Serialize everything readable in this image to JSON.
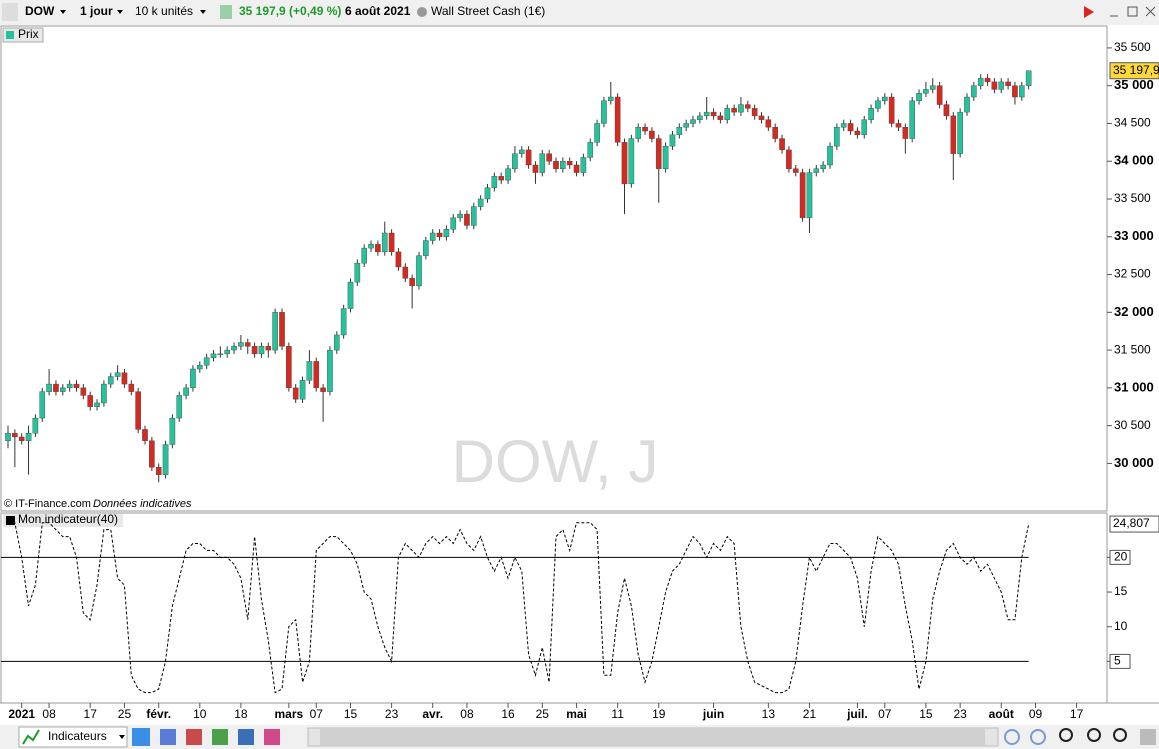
{
  "toolbar": {
    "symbol": "DOW",
    "period": "1 jour",
    "units": "10 k unités",
    "quote": "35 197,9 (+0,49 %)",
    "date": "6 août 2021",
    "instrument": "Wall Street Cash (1€)"
  },
  "watermark": "DOW, J",
  "source": "© IT-Finance.com",
  "note": "Données indicatives",
  "bottom_bar": {
    "button": "Indicateurs"
  },
  "chart_data": [
    {
      "type": "candlestick",
      "title": "Prix",
      "up_color": "#26c29b",
      "down_color": "#d42a20",
      "last_value_label": "35 197,9",
      "ylim": [
        29370,
        35790
      ],
      "yticks": [
        {
          "value": 30000,
          "label": "30 000"
        },
        {
          "value": 30500,
          "label": "30 500"
        },
        {
          "value": 31000,
          "label": "31 000"
        },
        {
          "value": 31500,
          "label": "31 500"
        },
        {
          "value": 32000,
          "label": "32 000"
        },
        {
          "value": 32500,
          "label": "32 500"
        },
        {
          "value": 33000,
          "label": "33 000"
        },
        {
          "value": 33500,
          "label": "33 500"
        },
        {
          "value": 34000,
          "label": "34 000"
        },
        {
          "value": 34500,
          "label": "34 500"
        },
        {
          "value": 35000,
          "label": "35 000"
        },
        {
          "value": 35500,
          "label": "35 500"
        }
      ],
      "categories": [
        null,
        null,
        "2021",
        null,
        null,
        null,
        "08",
        null,
        null,
        null,
        null,
        null,
        "17",
        null,
        null,
        null,
        null,
        "25",
        null,
        null,
        null,
        null,
        "févr.",
        null,
        null,
        null,
        null,
        null,
        "10",
        null,
        null,
        null,
        null,
        null,
        "18",
        null,
        null,
        null,
        null,
        null,
        null,
        "mars",
        null,
        null,
        null,
        "07",
        null,
        null,
        null,
        null,
        "15",
        null,
        null,
        null,
        null,
        null,
        "23",
        null,
        null,
        null,
        null,
        null,
        "avr.",
        null,
        null,
        null,
        null,
        "08",
        null,
        null,
        null,
        null,
        null,
        "16",
        null,
        null,
        null,
        null,
        "25",
        null,
        null,
        null,
        null,
        "mai",
        null,
        null,
        null,
        null,
        null,
        "11",
        null,
        null,
        null,
        null,
        null,
        "19",
        null,
        null,
        null,
        null,
        null,
        null,
        null,
        "juin",
        null,
        null,
        null,
        null,
        null,
        null,
        null,
        "13",
        null,
        null,
        null,
        null,
        null,
        "21",
        null,
        null,
        null,
        null,
        null,
        null,
        "juil.",
        null,
        null,
        null,
        "07",
        null,
        null,
        null,
        null,
        null,
        "15",
        null,
        null,
        null,
        null,
        "23",
        null,
        null,
        null,
        null,
        null,
        "août",
        null,
        null,
        null,
        null,
        "09",
        null,
        null,
        null,
        null,
        null,
        "17",
        null,
        null,
        null
      ],
      "candles": [
        [
          30300,
          30500,
          30200,
          30400
        ],
        [
          30400,
          30450,
          29950,
          30350
        ],
        [
          30350,
          30400,
          30250,
          30300
        ],
        [
          30300,
          30500,
          29850,
          30400
        ],
        [
          30400,
          30650,
          30350,
          30600
        ],
        [
          30600,
          31000,
          30550,
          30950
        ],
        [
          30950,
          31250,
          30900,
          31050
        ],
        [
          31050,
          31100,
          30900,
          30950
        ],
        [
          30950,
          31050,
          30900,
          31000
        ],
        [
          31000,
          31100,
          30950,
          31050
        ],
        [
          31050,
          31100,
          30950,
          31000
        ],
        [
          31000,
          31050,
          30850,
          30900
        ],
        [
          30900,
          30950,
          30700,
          30750
        ],
        [
          30750,
          30850,
          30700,
          30800
        ],
        [
          30800,
          31100,
          30750,
          31050
        ],
        [
          31050,
          31200,
          31000,
          31150
        ],
        [
          31150,
          31300,
          31100,
          31200
        ],
        [
          31200,
          31250,
          31000,
          31050
        ],
        [
          31050,
          31100,
          30900,
          30950
        ],
        [
          30950,
          31000,
          30400,
          30450
        ],
        [
          30450,
          30500,
          30250,
          30300
        ],
        [
          30300,
          30350,
          29900,
          29950
        ],
        [
          29950,
          30000,
          29750,
          29850
        ],
        [
          29850,
          30300,
          29800,
          30250
        ],
        [
          30250,
          30650,
          30200,
          30600
        ],
        [
          30600,
          30950,
          30550,
          30900
        ],
        [
          30900,
          31050,
          30850,
          31000
        ],
        [
          31000,
          31300,
          30950,
          31250
        ],
        [
          31250,
          31350,
          31200,
          31300
        ],
        [
          31300,
          31450,
          31250,
          31400
        ],
        [
          31400,
          31500,
          31350,
          31450
        ],
        [
          31450,
          31550,
          31400,
          31450
        ],
        [
          31450,
          31550,
          31400,
          31500
        ],
        [
          31500,
          31600,
          31450,
          31550
        ],
        [
          31550,
          31700,
          31500,
          31600
        ],
        [
          31600,
          31650,
          31450,
          31550
        ],
        [
          31550,
          31600,
          31400,
          31450
        ],
        [
          31450,
          31600,
          31400,
          31550
        ],
        [
          31550,
          31600,
          31400,
          31500
        ],
        [
          31500,
          32050,
          31450,
          32000
        ],
        [
          32000,
          32050,
          31500,
          31550
        ],
        [
          31550,
          31600,
          30950,
          31000
        ],
        [
          31000,
          31050,
          30800,
          30850
        ],
        [
          30850,
          31150,
          30800,
          31100
        ],
        [
          31100,
          31500,
          31050,
          31350
        ],
        [
          31350,
          31400,
          30950,
          31000
        ],
        [
          31000,
          31050,
          30550,
          30950
        ],
        [
          30950,
          31550,
          30900,
          31500
        ],
        [
          31500,
          31750,
          31450,
          31700
        ],
        [
          31700,
          32100,
          31650,
          32050
        ],
        [
          32050,
          32450,
          32000,
          32400
        ],
        [
          32400,
          32700,
          32350,
          32650
        ],
        [
          32650,
          32900,
          32600,
          32850
        ],
        [
          32850,
          32950,
          32800,
          32900
        ],
        [
          32900,
          32950,
          32750,
          32800
        ],
        [
          32800,
          33200,
          32750,
          33050
        ],
        [
          33050,
          33100,
          32750,
          32800
        ],
        [
          32800,
          32850,
          32550,
          32600
        ],
        [
          32600,
          32650,
          32400,
          32450
        ],
        [
          32450,
          32500,
          32050,
          32350
        ],
        [
          32350,
          32800,
          32300,
          32750
        ],
        [
          32750,
          33000,
          32700,
          32950
        ],
        [
          32950,
          33100,
          32900,
          33050
        ],
        [
          33050,
          33100,
          32950,
          33000
        ],
        [
          33000,
          33150,
          32950,
          33100
        ],
        [
          33100,
          33300,
          33050,
          33250
        ],
        [
          33250,
          33350,
          33200,
          33300
        ],
        [
          33300,
          33350,
          33100,
          33150
        ],
        [
          33150,
          33450,
          33100,
          33400
        ],
        [
          33400,
          33550,
          33350,
          33500
        ],
        [
          33500,
          33700,
          33450,
          33650
        ],
        [
          33650,
          33850,
          33600,
          33800
        ],
        [
          33800,
          33850,
          33700,
          33750
        ],
        [
          33750,
          33950,
          33700,
          33900
        ],
        [
          33900,
          34200,
          33850,
          34100
        ],
        [
          34100,
          34200,
          34050,
          34150
        ],
        [
          34150,
          34200,
          33900,
          33950
        ],
        [
          33950,
          34000,
          33700,
          33850
        ],
        [
          33850,
          34150,
          33800,
          34100
        ],
        [
          34100,
          34150,
          33950,
          34000
        ],
        [
          34000,
          34050,
          33850,
          33900
        ],
        [
          33900,
          34050,
          33850,
          34000
        ],
        [
          34000,
          34050,
          33900,
          33950
        ],
        [
          33950,
          34000,
          33800,
          33850
        ],
        [
          33850,
          34100,
          33800,
          34050
        ],
        [
          34050,
          34300,
          34000,
          34250
        ],
        [
          34250,
          34550,
          34200,
          34500
        ],
        [
          34500,
          34850,
          34450,
          34800
        ],
        [
          34800,
          35050,
          34750,
          34850
        ],
        [
          34850,
          34900,
          34200,
          34250
        ],
        [
          34250,
          34300,
          33300,
          33700
        ],
        [
          33700,
          34350,
          33650,
          34300
        ],
        [
          34300,
          34500,
          34250,
          34450
        ],
        [
          34450,
          34500,
          34350,
          34400
        ],
        [
          34400,
          34450,
          34250,
          34300
        ],
        [
          34300,
          34350,
          33450,
          33900
        ],
        [
          33900,
          34250,
          33850,
          34200
        ],
        [
          34200,
          34400,
          34150,
          34350
        ],
        [
          34350,
          34500,
          34300,
          34450
        ],
        [
          34450,
          34550,
          34400,
          34500
        ],
        [
          34500,
          34600,
          34450,
          34550
        ],
        [
          34550,
          34650,
          34500,
          34600
        ],
        [
          34600,
          34850,
          34550,
          34650
        ],
        [
          34650,
          34700,
          34550,
          34600
        ],
        [
          34600,
          34650,
          34500,
          34550
        ],
        [
          34550,
          34750,
          34500,
          34700
        ],
        [
          34700,
          34750,
          34600,
          34650
        ],
        [
          34650,
          34850,
          34600,
          34750
        ],
        [
          34750,
          34800,
          34650,
          34700
        ],
        [
          34700,
          34750,
          34550,
          34600
        ],
        [
          34600,
          34650,
          34500,
          34550
        ],
        [
          34550,
          34600,
          34400,
          34450
        ],
        [
          34450,
          34500,
          34250,
          34300
        ],
        [
          34300,
          34350,
          34100,
          34150
        ],
        [
          34150,
          34200,
          33850,
          33900
        ],
        [
          33900,
          33950,
          33800,
          33850
        ],
        [
          33850,
          33900,
          33200,
          33250
        ],
        [
          33250,
          33900,
          33050,
          33850
        ],
        [
          33850,
          33950,
          33800,
          33900
        ],
        [
          33900,
          34000,
          33850,
          33950
        ],
        [
          33950,
          34250,
          33900,
          34200
        ],
        [
          34200,
          34500,
          34150,
          34450
        ],
        [
          34450,
          34550,
          34400,
          34500
        ],
        [
          34500,
          34550,
          34350,
          34400
        ],
        [
          34400,
          34450,
          34300,
          34350
        ],
        [
          34350,
          34600,
          34300,
          34550
        ],
        [
          34550,
          34750,
          34500,
          34700
        ],
        [
          34700,
          34850,
          34650,
          34800
        ],
        [
          34800,
          34900,
          34750,
          34850
        ],
        [
          34850,
          34900,
          34450,
          34500
        ],
        [
          34500,
          34550,
          34400,
          34450
        ],
        [
          34450,
          34500,
          34100,
          34300
        ],
        [
          34300,
          34850,
          34250,
          34800
        ],
        [
          34800,
          34950,
          34750,
          34900
        ],
        [
          34900,
          35050,
          34850,
          34950
        ],
        [
          34950,
          35100,
          34900,
          35000
        ],
        [
          35000,
          35050,
          34700,
          34750
        ],
        [
          34750,
          34800,
          34550,
          34600
        ],
        [
          34600,
          34650,
          33750,
          34100
        ],
        [
          34100,
          34700,
          34050,
          34650
        ],
        [
          34650,
          34900,
          34600,
          34850
        ],
        [
          34850,
          35050,
          34800,
          35000
        ],
        [
          35000,
          35150,
          34950,
          35100
        ],
        [
          35100,
          35150,
          35000,
          35050
        ],
        [
          35050,
          35100,
          34900,
          34950
        ],
        [
          34950,
          35100,
          34900,
          35050
        ],
        [
          35050,
          35100,
          34950,
          35000
        ],
        [
          35000,
          35050,
          34750,
          34850
        ],
        [
          34850,
          35050,
          34800,
          35000
        ],
        [
          35000,
          35200,
          34950,
          35197.9
        ],
        null,
        null,
        null,
        null,
        null,
        null,
        null,
        null,
        null,
        null
      ]
    },
    {
      "type": "line",
      "title": "Mon indicateur(40)",
      "color": "#000000",
      "dashed": true,
      "last_value_label": "24,807",
      "levels": [
        20,
        5
      ],
      "ylim": [
        -1,
        26.4
      ],
      "yticks": [
        5,
        10,
        15,
        20
      ],
      "values": [
        25,
        25,
        20,
        13,
        16,
        25,
        25,
        24,
        23,
        23,
        20,
        12,
        11,
        16,
        24,
        24,
        17,
        16,
        3,
        1,
        0.5,
        0.5,
        1,
        5,
        13,
        17,
        21,
        22,
        22,
        21,
        21,
        20,
        20,
        19,
        17,
        11,
        23,
        14,
        8,
        0.5,
        1,
        10,
        11,
        2,
        5,
        21,
        22,
        23,
        23,
        22,
        21,
        19,
        15,
        14,
        10,
        7,
        5,
        20,
        22,
        21,
        20,
        22,
        23,
        22,
        23,
        22,
        24,
        22,
        21,
        23,
        20,
        18,
        20,
        17,
        20,
        18,
        6,
        3,
        7,
        2,
        23,
        24,
        21,
        25,
        25,
        25,
        24,
        3,
        3,
        12,
        17,
        13,
        6,
        2,
        5,
        10,
        15,
        18,
        19,
        21,
        23,
        22,
        20,
        22,
        21,
        23,
        22,
        10,
        5,
        2,
        1.5,
        1,
        0.5,
        0.5,
        1,
        5,
        13,
        20,
        18,
        20,
        22,
        22,
        21,
        20,
        17,
        10,
        18,
        23,
        22,
        21,
        19,
        13,
        8,
        1,
        5,
        14,
        18,
        21,
        22,
        20,
        19,
        20,
        18,
        19,
        17,
        15,
        11,
        11,
        20,
        24.807,
        null,
        null,
        null,
        null,
        null,
        null,
        null,
        null,
        null,
        null
      ]
    }
  ]
}
